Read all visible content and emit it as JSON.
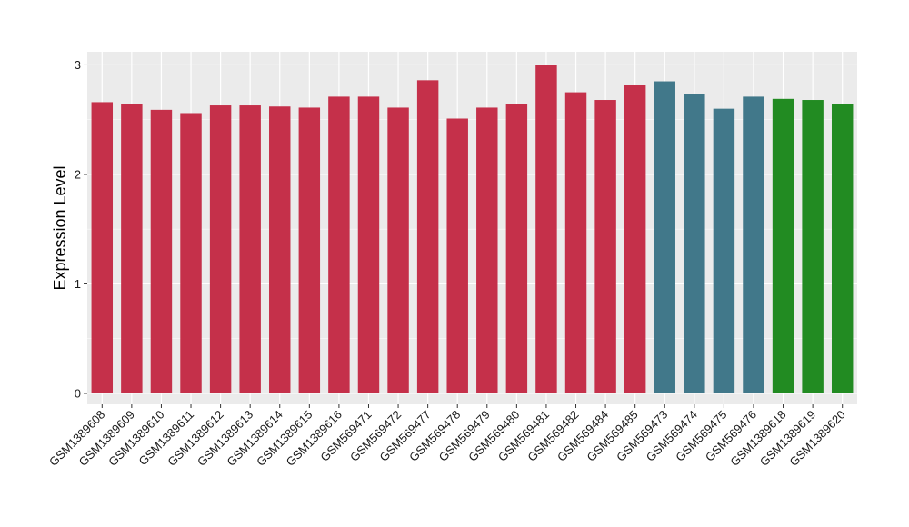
{
  "chart_data": {
    "type": "bar",
    "title": "",
    "xlabel": "",
    "ylabel": "Expression Level",
    "ylim": [
      -0.1,
      3.12
    ],
    "yticks": [
      0,
      1,
      2,
      3
    ],
    "grid": true,
    "legend": "none",
    "colors": {
      "panel_background": "#ebebeb",
      "grid": "#ffffff",
      "group_red": "#c5304a",
      "group_teal": "#41788a",
      "group_green": "#228b22"
    },
    "categories": [
      "GSM1389608",
      "GSM1389609",
      "GSM1389610",
      "GSM1389611",
      "GSM1389612",
      "GSM1389613",
      "GSM1389614",
      "GSM1389615",
      "GSM1389616",
      "GSM569471",
      "GSM569472",
      "GSM569477",
      "GSM569478",
      "GSM569479",
      "GSM569480",
      "GSM569481",
      "GSM569482",
      "GSM569484",
      "GSM569485",
      "GSM569473",
      "GSM569474",
      "GSM569475",
      "GSM569476",
      "GSM1389618",
      "GSM1389619",
      "GSM1389620"
    ],
    "values": [
      2.66,
      2.64,
      2.59,
      2.56,
      2.63,
      2.63,
      2.62,
      2.61,
      2.71,
      2.71,
      2.61,
      2.86,
      2.51,
      2.61,
      2.64,
      3.0,
      2.75,
      2.68,
      2.82,
      2.85,
      2.73,
      2.6,
      2.71,
      2.69,
      2.68,
      2.64
    ],
    "bar_colors": [
      "#c5304a",
      "#c5304a",
      "#c5304a",
      "#c5304a",
      "#c5304a",
      "#c5304a",
      "#c5304a",
      "#c5304a",
      "#c5304a",
      "#c5304a",
      "#c5304a",
      "#c5304a",
      "#c5304a",
      "#c5304a",
      "#c5304a",
      "#c5304a",
      "#c5304a",
      "#c5304a",
      "#c5304a",
      "#41788a",
      "#41788a",
      "#41788a",
      "#41788a",
      "#228b22",
      "#228b22",
      "#228b22"
    ]
  }
}
